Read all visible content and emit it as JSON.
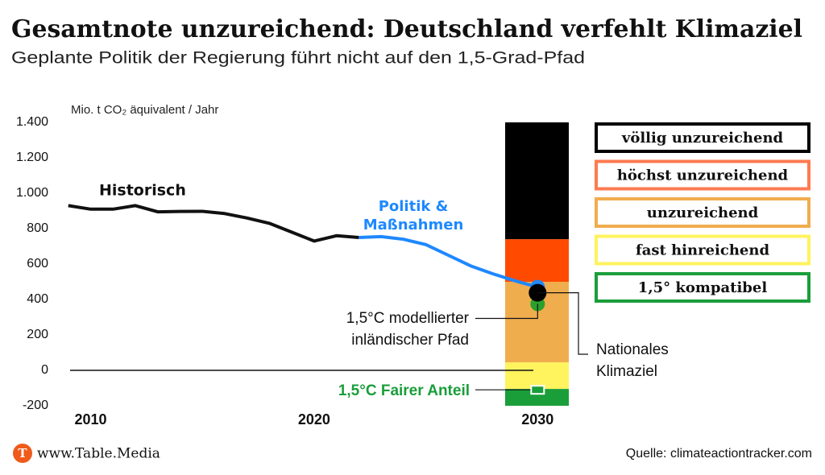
{
  "chart_data": {
    "type": "line",
    "title": "Gesamtnote unzureichend: Deutschland verfehlt Klimaziel",
    "subtitle": "Geplante Politik der Regierung führt nicht auf den 1,5-Grad-Pfad",
    "y_label": "Mio. t CO₂ äquivalent / Jahr",
    "xlim": [
      2008.9,
      2031.9
    ],
    "xticks": [
      2010,
      2020,
      2030
    ],
    "ylim": [
      -200,
      1400
    ],
    "yticks": [
      {
        "value": 1400,
        "label": "1.400"
      },
      {
        "value": 1200,
        "label": "1.200"
      },
      {
        "value": 1000,
        "label": "1.000"
      },
      800,
      600,
      400,
      200,
      0,
      -200
    ],
    "series": [
      {
        "name": "Historisch",
        "color": "#111111",
        "x": [
          2009,
          2010,
          2011,
          2012,
          2013,
          2014,
          2015,
          2016,
          2017,
          2018,
          2019,
          2020,
          2021,
          2022
        ],
        "values": [
          930,
          910,
          910,
          930,
          895,
          897,
          898,
          885,
          860,
          830,
          780,
          730,
          760,
          750
        ]
      },
      {
        "name": "Politik & Maßnahmen",
        "color": "#1e88ff",
        "x": [
          2022,
          2023,
          2024,
          2025,
          2026,
          2027,
          2028,
          2029,
          2030
        ],
        "values": [
          750,
          755,
          740,
          710,
          650,
          590,
          545,
          505,
          470
        ]
      }
    ],
    "rating_bands": [
      {
        "label": "völlig unzureichend",
        "color": "#000000",
        "border": "#000000",
        "range": [
          740,
          1400
        ]
      },
      {
        "label": "höchst unzureichend",
        "color": "#ff4a00",
        "border": "#ff7a50",
        "range": [
          500,
          740
        ]
      },
      {
        "label": "unzureichend",
        "color": "#f0ad4e",
        "border": "#f0ad4e",
        "range": [
          45,
          500
        ]
      },
      {
        "label": "fast hinreichend",
        "color": "#fff35e",
        "border": "#fff35e",
        "range": [
          -105,
          45
        ]
      },
      {
        "label": "1,5° kompatibel",
        "color": "#1a9e3a",
        "border": "#1a9e3a",
        "range": [
          -200,
          -105
        ]
      }
    ],
    "markers": [
      {
        "text": [
          "1,5°C modellierter",
          "inländischer Pfad"
        ],
        "x": 2030,
        "value": 375,
        "color": "#2ca02c"
      },
      {
        "text": [
          "Nationales",
          "Klimaziel"
        ],
        "x": 2030,
        "value": 438,
        "color": "#000000"
      },
      {
        "text": [
          "1,5°C Fairer Anteil"
        ],
        "x": 2030,
        "value": -110,
        "color": "#1a9e3a"
      }
    ],
    "footer": {
      "brand": "www.Table.Media",
      "logo": "T",
      "source": "Quelle: climateactiontracker.com"
    }
  }
}
